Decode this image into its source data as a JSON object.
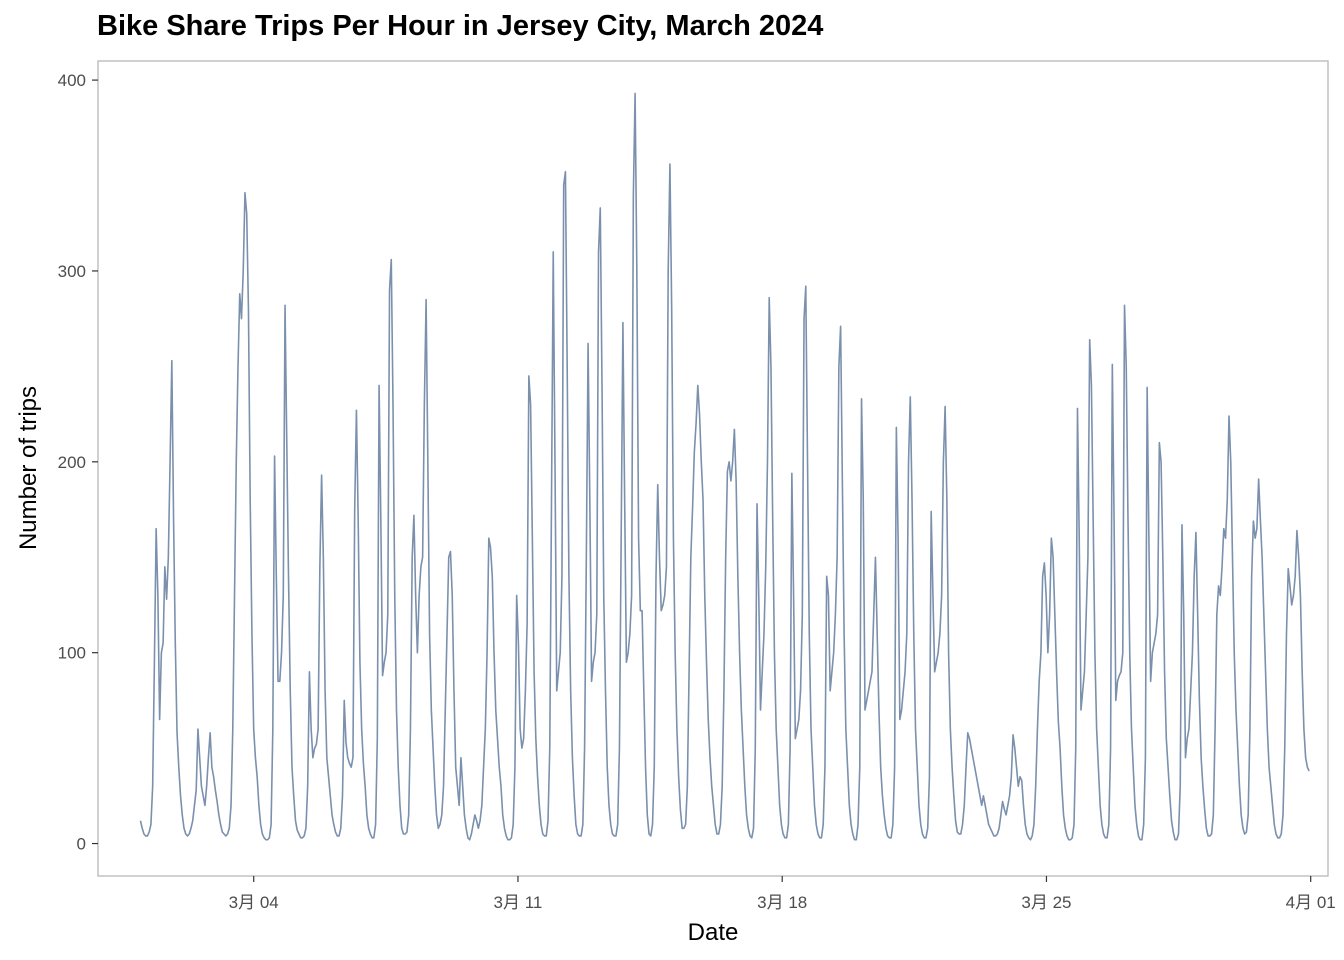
{
  "chart_data": {
    "type": "line",
    "title": "Bike Share Trips Per Hour in Jersey City, March 2024",
    "xlabel": "Date",
    "ylabel": "Number of trips",
    "x_start": "2024-03-01 00:00",
    "x_end": "2024-03-31 23:00",
    "xlim": [
      "2024-02-28 21:00",
      "2024-04-01 11:00"
    ],
    "ylim": [
      -17,
      410
    ],
    "x_ticks": [
      {
        "date": "2024-03-04",
        "label": "3月 04"
      },
      {
        "date": "2024-03-11",
        "label": "3月 11"
      },
      {
        "date": "2024-03-18",
        "label": "3月 18"
      },
      {
        "date": "2024-03-25",
        "label": "3月 25"
      },
      {
        "date": "2024-04-01",
        "label": "4月 01"
      }
    ],
    "y_ticks": [
      0,
      100,
      200,
      300,
      400
    ],
    "line_color": "#7a90ad",
    "panel_border_color": "#bdbdbd",
    "grid": false,
    "series": [
      {
        "values": [
          12,
          8,
          5,
          4,
          4,
          6,
          10,
          30,
          95,
          165,
          130,
          65,
          100,
          105,
          145,
          128,
          150,
          200,
          253,
          170,
          105,
          58,
          40,
          25,
          15,
          8,
          5,
          4,
          5,
          8,
          12,
          20,
          28,
          60,
          45,
          30,
          25,
          20,
          30,
          45,
          58,
          40,
          35,
          28,
          22,
          15,
          10,
          6,
          5,
          4,
          5,
          8,
          20,
          60,
          130,
          200,
          250,
          288,
          275,
          300,
          341,
          330,
          280,
          180,
          110,
          60,
          45,
          35,
          20,
          10,
          5,
          3,
          2,
          2,
          3,
          10,
          60,
          203,
          140,
          85,
          85,
          100,
          130,
          282,
          210,
          140,
          80,
          40,
          25,
          12,
          7,
          5,
          3,
          3,
          4,
          8,
          30,
          90,
          60,
          45,
          50,
          52,
          60,
          145,
          193,
          150,
          80,
          45,
          35,
          25,
          15,
          10,
          6,
          4,
          4,
          8,
          25,
          75,
          53,
          45,
          42,
          40,
          45,
          175,
          227,
          170,
          95,
          60,
          42,
          30,
          15,
          8,
          5,
          3,
          3,
          10,
          55,
          240,
          170,
          88,
          95,
          100,
          120,
          290,
          306,
          230,
          130,
          70,
          40,
          20,
          8,
          5,
          5,
          6,
          15,
          60,
          150,
          172,
          130,
          100,
          130,
          145,
          150,
          230,
          285,
          200,
          110,
          70,
          50,
          30,
          15,
          8,
          10,
          15,
          30,
          70,
          110,
          150,
          153,
          130,
          80,
          40,
          30,
          20,
          45,
          30,
          15,
          8,
          3,
          2,
          5,
          10,
          15,
          12,
          8,
          12,
          20,
          40,
          60,
          100,
          160,
          155,
          140,
          100,
          70,
          55,
          40,
          30,
          15,
          8,
          4,
          2,
          2,
          3,
          10,
          40,
          130,
          105,
          60,
          50,
          55,
          80,
          115,
          245,
          230,
          160,
          90,
          55,
          35,
          20,
          10,
          5,
          4,
          4,
          12,
          50,
          180,
          310,
          200,
          80,
          90,
          100,
          140,
          345,
          352,
          250,
          140,
          80,
          45,
          25,
          10,
          5,
          4,
          4,
          10,
          50,
          150,
          262,
          180,
          85,
          95,
          100,
          120,
          310,
          333,
          240,
          130,
          80,
          40,
          20,
          10,
          5,
          4,
          4,
          10,
          50,
          160,
          273,
          180,
          95,
          100,
          110,
          130,
          340,
          393,
          300,
          160,
          122,
          122,
          80,
          40,
          15,
          5,
          4,
          10,
          40,
          140,
          188,
          150,
          122,
          125,
          130,
          145,
          300,
          356,
          280,
          160,
          100,
          60,
          35,
          18,
          8,
          8,
          10,
          30,
          90,
          150,
          176,
          205,
          220,
          240,
          225,
          200,
          180,
          130,
          95,
          65,
          45,
          30,
          20,
          10,
          5,
          5,
          10,
          30,
          80,
          150,
          195,
          200,
          190,
          200,
          217,
          190,
          140,
          100,
          70,
          50,
          30,
          15,
          8,
          4,
          3,
          8,
          50,
          178,
          130,
          70,
          90,
          110,
          145,
          200,
          286,
          250,
          170,
          100,
          60,
          40,
          20,
          10,
          5,
          3,
          3,
          10,
          50,
          194,
          130,
          55,
          60,
          65,
          80,
          120,
          275,
          292,
          200,
          110,
          60,
          40,
          20,
          10,
          5,
          3,
          3,
          10,
          40,
          140,
          130,
          80,
          90,
          100,
          120,
          150,
          250,
          271,
          190,
          110,
          60,
          40,
          20,
          10,
          5,
          2,
          2,
          10,
          40,
          233,
          180,
          70,
          75,
          80,
          85,
          90,
          120,
          150,
          110,
          70,
          40,
          25,
          15,
          8,
          4,
          3,
          3,
          10,
          40,
          218,
          160,
          65,
          70,
          80,
          90,
          110,
          200,
          234,
          180,
          110,
          60,
          40,
          20,
          10,
          5,
          3,
          3,
          8,
          35,
          174,
          130,
          90,
          95,
          100,
          110,
          130,
          200,
          229,
          180,
          100,
          60,
          40,
          25,
          12,
          6,
          5,
          5,
          10,
          20,
          40,
          58,
          55,
          50,
          45,
          40,
          35,
          30,
          25,
          20,
          25,
          20,
          15,
          10,
          8,
          6,
          4,
          4,
          5,
          8,
          15,
          22,
          18,
          15,
          20,
          25,
          35,
          57,
          50,
          40,
          30,
          35,
          33,
          20,
          10,
          5,
          3,
          2,
          4,
          10,
          30,
          60,
          85,
          100,
          140,
          147,
          130,
          100,
          120,
          160,
          150,
          120,
          90,
          64,
          50,
          30,
          15,
          8,
          4,
          2,
          2,
          3,
          10,
          50,
          228,
          160,
          70,
          80,
          90,
          120,
          150,
          264,
          240,
          170,
          100,
          60,
          40,
          20,
          10,
          5,
          3,
          3,
          10,
          50,
          251,
          170,
          75,
          85,
          88,
          90,
          100,
          282,
          250,
          170,
          100,
          60,
          40,
          20,
          10,
          4,
          2,
          2,
          10,
          45,
          239,
          160,
          85,
          100,
          105,
          110,
          120,
          210,
          200,
          150,
          90,
          55,
          40,
          25,
          12,
          6,
          2,
          2,
          5,
          30,
          167,
          120,
          45,
          55,
          60,
          80,
          100,
          140,
          163,
          120,
          75,
          45,
          30,
          18,
          8,
          4,
          4,
          5,
          15,
          60,
          120,
          135,
          130,
          145,
          165,
          160,
          180,
          224,
          200,
          150,
          100,
          70,
          50,
          30,
          15,
          8,
          5,
          6,
          15,
          60,
          140,
          169,
          160,
          165,
          191,
          170,
          150,
          120,
          90,
          60,
          40,
          30,
          20,
          10,
          5,
          3,
          3,
          5,
          15,
          50,
          110,
          144,
          135,
          125,
          130,
          140,
          164,
          150,
          130,
          90,
          60,
          45,
          40,
          38
        ]
      }
    ]
  }
}
